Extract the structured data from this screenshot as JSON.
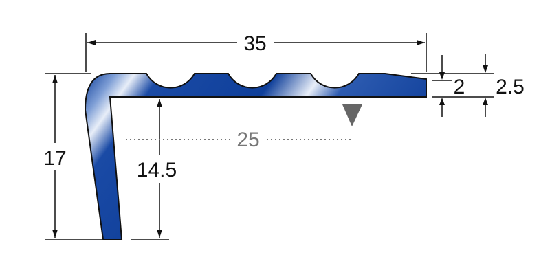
{
  "dimensions": {
    "width": "35",
    "height": "17",
    "inner_height": "14.5",
    "tread_depth": "25",
    "thickness_inner": "2",
    "thickness_outer": "2.5"
  },
  "colors": {
    "profile": "#0f3f9a",
    "highlight": "#e8eef8",
    "marker": "#666666",
    "dim_25": "#777777"
  }
}
